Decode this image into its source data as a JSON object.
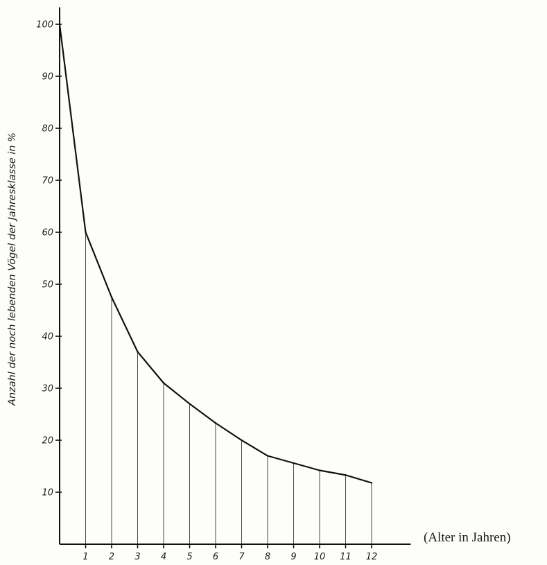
{
  "chart_data": {
    "type": "line",
    "title": "",
    "xlabel": "(Alter in Jahren)",
    "ylabel": "Anzahl der noch lebenden Vögel der Jahresklasse in %",
    "x_ticks": [
      "1",
      "2",
      "3",
      "4",
      "5",
      "6",
      "7",
      "8",
      "9",
      "10",
      "11",
      "12"
    ],
    "y_ticks": [
      "10",
      "20",
      "30",
      "40",
      "50",
      "60",
      "70",
      "80",
      "90",
      "100"
    ],
    "xlim": [
      0,
      13.5
    ],
    "ylim": [
      0,
      103
    ],
    "grid": false,
    "drop_lines": true,
    "series": [
      {
        "x": [
          0,
          1,
          2,
          3,
          4,
          5,
          6,
          7,
          8,
          9,
          10,
          11,
          12
        ],
        "values": [
          100,
          60,
          47.5,
          37,
          31,
          27,
          23.3,
          20,
          17,
          15.6,
          14.2,
          13.3,
          11.8
        ]
      }
    ]
  }
}
